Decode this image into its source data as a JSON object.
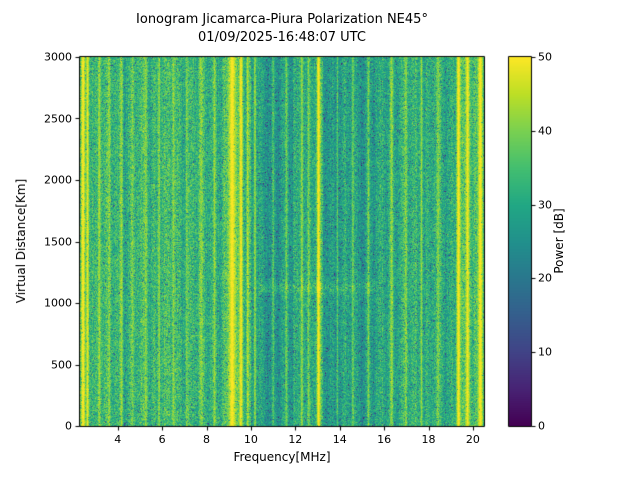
{
  "chart_data": {
    "type": "heatmap",
    "title_line1": "Ionogram Jicamarca-Piura Polarization NE45°",
    "title_line2": "01/09/2025-16:48:07 UTC",
    "xlabel": "Frequency[MHz]",
    "ylabel": "Virtual Distance[Km]",
    "colorbar_label": "Power [dB]",
    "x_range": [
      2.3,
      20.5
    ],
    "y_range": [
      0,
      3000
    ],
    "value_range": [
      0,
      50
    ],
    "x_ticks": [
      4,
      6,
      8,
      10,
      12,
      14,
      16,
      18,
      20
    ],
    "y_ticks": [
      0,
      500,
      1000,
      1500,
      2000,
      2500,
      3000
    ],
    "colorbar_ticks": [
      0,
      10,
      20,
      30,
      40,
      50
    ],
    "colormap": "viridis",
    "colormap_stops": [
      [
        0.0,
        "#440154"
      ],
      [
        0.1,
        "#482475"
      ],
      [
        0.2,
        "#414487"
      ],
      [
        0.3,
        "#355f8d"
      ],
      [
        0.4,
        "#2a788e"
      ],
      [
        0.5,
        "#21918c"
      ],
      [
        0.6,
        "#22a884"
      ],
      [
        0.7,
        "#44bf70"
      ],
      [
        0.8,
        "#7ad151"
      ],
      [
        0.9,
        "#bddf26"
      ],
      [
        1.0,
        "#fde725"
      ]
    ],
    "regions": [
      {
        "from": 2.3,
        "to": 2.85,
        "base": 35
      },
      {
        "from": 2.85,
        "to": 9.0,
        "base": 33
      },
      {
        "from": 9.0,
        "to": 10.0,
        "base": 34
      },
      {
        "from": 10.0,
        "to": 11.9,
        "base": 27.5
      },
      {
        "from": 11.9,
        "to": 13.25,
        "base": 30.5
      },
      {
        "from": 13.25,
        "to": 15.9,
        "base": 28
      },
      {
        "from": 15.9,
        "to": 19.3,
        "base": 31.5
      },
      {
        "from": 19.3,
        "to": 20.5,
        "base": 33
      }
    ],
    "stripes": [
      {
        "f": 2.42,
        "hw": 0.06,
        "db": 50
      },
      {
        "f": 2.62,
        "hw": 0.05,
        "db": 48
      },
      {
        "f": 3.15,
        "hw": 0.05,
        "db": 43
      },
      {
        "f": 3.6,
        "hw": 0.04,
        "db": 41
      },
      {
        "f": 4.15,
        "hw": 0.05,
        "db": 42
      },
      {
        "f": 4.65,
        "hw": 0.04,
        "db": 40
      },
      {
        "f": 5.25,
        "hw": 0.05,
        "db": 41
      },
      {
        "f": 5.85,
        "hw": 0.04,
        "db": 42
      },
      {
        "f": 6.5,
        "hw": 0.05,
        "db": 41
      },
      {
        "f": 7.1,
        "hw": 0.04,
        "db": 40
      },
      {
        "f": 7.75,
        "hw": 0.05,
        "db": 41
      },
      {
        "f": 8.35,
        "hw": 0.04,
        "db": 42
      },
      {
        "f": 9.15,
        "hw": 0.12,
        "db": 50
      },
      {
        "f": 9.55,
        "hw": 0.07,
        "db": 49
      },
      {
        "f": 9.85,
        "hw": 0.04,
        "db": 44
      },
      {
        "f": 10.18,
        "hw": 0.04,
        "db": 43
      },
      {
        "f": 11.0,
        "hw": 0.03,
        "db": 37
      },
      {
        "f": 11.6,
        "hw": 0.04,
        "db": 39
      },
      {
        "f": 12.3,
        "hw": 0.05,
        "db": 42
      },
      {
        "f": 12.6,
        "hw": 0.04,
        "db": 40
      },
      {
        "f": 13.05,
        "hw": 0.06,
        "db": 50
      },
      {
        "f": 13.9,
        "hw": 0.03,
        "db": 37
      },
      {
        "f": 14.6,
        "hw": 0.04,
        "db": 39
      },
      {
        "f": 15.3,
        "hw": 0.04,
        "db": 40
      },
      {
        "f": 16.35,
        "hw": 0.05,
        "db": 42
      },
      {
        "f": 17.0,
        "hw": 0.04,
        "db": 41
      },
      {
        "f": 17.7,
        "hw": 0.04,
        "db": 42
      },
      {
        "f": 18.45,
        "hw": 0.04,
        "db": 41
      },
      {
        "f": 19.37,
        "hw": 0.07,
        "db": 50
      },
      {
        "f": 19.78,
        "hw": 0.07,
        "db": 49
      },
      {
        "f": 20.36,
        "hw": 0.09,
        "db": 50
      }
    ],
    "echo_trace": {
      "y_km": 1120,
      "x_from": 10.3,
      "x_to": 15.6,
      "boost_db": 5.5,
      "sigma_km": 35
    },
    "noise": {
      "amplitude_db": 6.5,
      "dark_speckle_prob": 0.055,
      "dark_speckle_db": -13,
      "bright_speckle_prob": 0.03,
      "bright_speckle_db": 4
    },
    "seed": 1234
  }
}
